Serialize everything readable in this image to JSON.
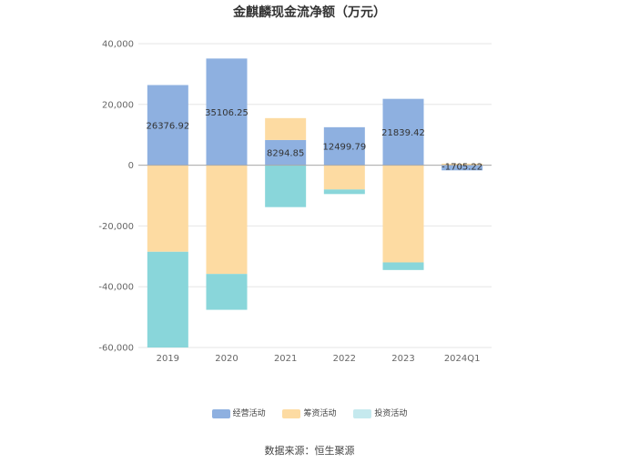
{
  "chart_data": {
    "type": "bar",
    "stacked": true,
    "title": "金麒麟现金流净额（万元）",
    "categories": [
      "2019",
      "2020",
      "2021",
      "2022",
      "2023",
      "2024Q1"
    ],
    "series": [
      {
        "name": "经营活动",
        "color": "#8eb0e0",
        "values": [
          26376.92,
          35106.25,
          8294.85,
          12499.79,
          21839.42,
          -1705.22
        ]
      },
      {
        "name": "筹资活动",
        "color": "#fddba2",
        "values": [
          -28500,
          -35800,
          7200,
          -8000,
          -32000,
          500
        ]
      },
      {
        "name": "投资活动",
        "color": "#89d6da",
        "values": [
          -31500,
          -11800,
          -13800,
          -1500,
          -2500,
          0
        ]
      }
    ],
    "data_labels": [
      "26376.92",
      "35106.25",
      "8294.85",
      "12499.79",
      "21839.42",
      "-1705.22"
    ],
    "yticks": [
      "40,000",
      "20,000",
      "0",
      "-20,000",
      "-40,000",
      "-60,000"
    ],
    "ylim": [
      -60000,
      40000
    ],
    "grid": true,
    "legend_position": "bottom"
  },
  "legend": [
    {
      "label": "经营活动",
      "color": "#8eb0e0"
    },
    {
      "label": "筹资活动",
      "color": "#fddba2"
    },
    {
      "label": "投资活动",
      "color": "#c5e9ee"
    }
  ],
  "source": "数据来源：恒生聚源"
}
